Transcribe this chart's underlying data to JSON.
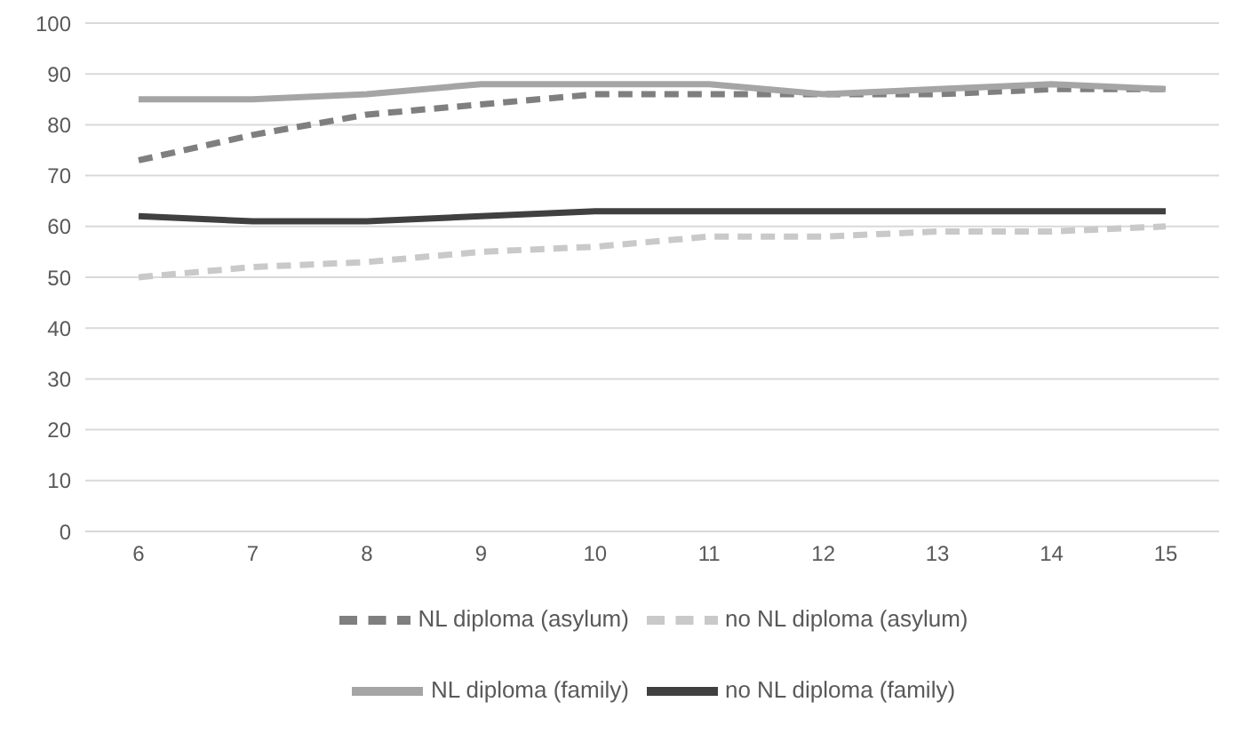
{
  "chart_data": {
    "type": "line",
    "categories": [
      "6",
      "7",
      "8",
      "9",
      "10",
      "11",
      "12",
      "13",
      "14",
      "15"
    ],
    "series": [
      {
        "name": "NL diploma (asylum)",
        "color": "#7f7f7f",
        "line_style": "dashed",
        "values": [
          73,
          78,
          82,
          84,
          86,
          86,
          86,
          86,
          87,
          87
        ]
      },
      {
        "name": "no NL diploma (asylum)",
        "color": "#c9c9c9",
        "line_style": "dashed",
        "values": [
          50,
          52,
          53,
          55,
          56,
          58,
          58,
          59,
          59,
          60
        ]
      },
      {
        "name": "NL diploma (family)",
        "color": "#a5a5a5",
        "line_style": "solid",
        "values": [
          85,
          85,
          86,
          88,
          88,
          88,
          86,
          87,
          88,
          87
        ]
      },
      {
        "name": "no NL diploma (family)",
        "color": "#404040",
        "line_style": "solid",
        "values": [
          62,
          61,
          61,
          62,
          63,
          63,
          63,
          63,
          63,
          63
        ]
      }
    ],
    "ylim": [
      0,
      100
    ],
    "yticks": [
      0,
      10,
      20,
      30,
      40,
      50,
      60,
      70,
      80,
      90,
      100
    ],
    "grid": "y",
    "legend": "bottom",
    "marker": "none"
  }
}
